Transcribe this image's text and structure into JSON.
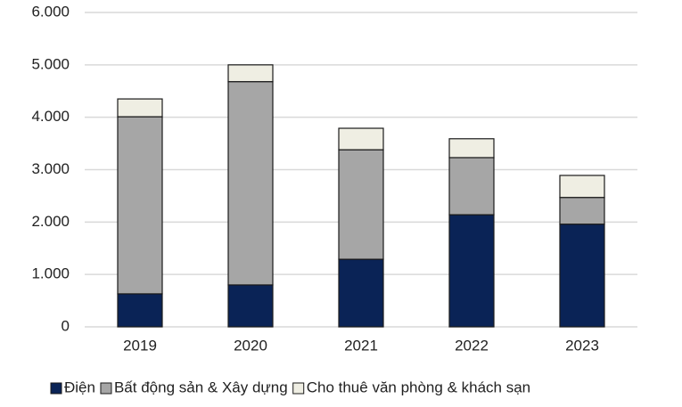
{
  "chart_data": {
    "type": "stacked_bar",
    "categories": [
      "2019",
      "2020",
      "2021",
      "2022",
      "2023"
    ],
    "series": [
      {
        "name": "Điện",
        "color": "#0a2356",
        "values": [
          630,
          800,
          1290,
          2140,
          1960
        ]
      },
      {
        "name": "Bất động sản & Xây dựng",
        "color": "#a6a6a6",
        "values": [
          3380,
          3880,
          2090,
          1090,
          510
        ]
      },
      {
        "name": "Cho thuê văn phòng & khách sạn",
        "color": "#efeee3",
        "values": [
          340,
          320,
          410,
          360,
          420
        ]
      }
    ],
    "ylim": [
      0,
      6000
    ],
    "yticks": [
      0,
      {
        "value": 1000,
        "label": "1.000"
      },
      {
        "value": 2000,
        "label": "2.000"
      },
      {
        "value": 3000,
        "label": "3.000"
      },
      {
        "value": 4000,
        "label": "4.000"
      },
      {
        "value": 5000,
        "label": "5.000"
      },
      {
        "value": 6000,
        "label": "6.000"
      }
    ],
    "grid": true,
    "legend": "bottom"
  }
}
